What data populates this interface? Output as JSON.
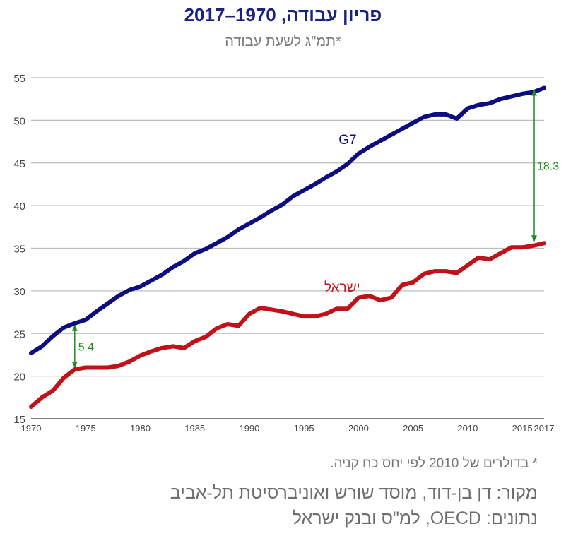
{
  "chart_data": {
    "type": "line",
    "title": "פריון עבודה, 1970–2017",
    "subtitle": "תמ\"ג לשעת עבודה*",
    "ylim": [
      15,
      55
    ],
    "xlim": [
      1970,
      2017
    ],
    "y_ticks": [
      15,
      20,
      25,
      30,
      35,
      40,
      45,
      50,
      55
    ],
    "x_ticks": [
      "1970",
      "1975",
      "1980",
      "1985",
      "1990",
      "1995",
      "2000",
      "2005",
      "2010",
      "2015",
      "2017"
    ],
    "x_tick_values": [
      1970,
      1975,
      1980,
      1985,
      1990,
      1995,
      2000,
      2005,
      2010,
      2015,
      2017
    ],
    "grid": true,
    "x": [
      1970,
      1971,
      1972,
      1973,
      1974,
      1975,
      1976,
      1977,
      1978,
      1979,
      1980,
      1981,
      1982,
      1983,
      1984,
      1985,
      1986,
      1987,
      1988,
      1989,
      1990,
      1991,
      1992,
      1993,
      1994,
      1995,
      1996,
      1997,
      1998,
      1999,
      2000,
      2001,
      2002,
      2003,
      2004,
      2005,
      2006,
      2007,
      2008,
      2009,
      2010,
      2011,
      2012,
      2013,
      2014,
      2015,
      2016,
      2017
    ],
    "series": [
      {
        "name": "G7",
        "color": "#0d0d80",
        "values": [
          22.7,
          23.5,
          24.7,
          25.7,
          26.2,
          26.6,
          27.6,
          28.5,
          29.4,
          30.1,
          30.5,
          31.2,
          31.9,
          32.8,
          33.5,
          34.4,
          34.9,
          35.6,
          36.3,
          37.2,
          37.9,
          38.6,
          39.4,
          40.1,
          41.1,
          41.8,
          42.5,
          43.3,
          44.0,
          44.9,
          46.1,
          46.9,
          47.6,
          48.3,
          49.0,
          49.7,
          50.4,
          50.7,
          50.7,
          50.2,
          51.4,
          51.8,
          52.0,
          52.5,
          52.8,
          53.1,
          53.3,
          53.8
        ]
      },
      {
        "name": "ישראל",
        "color": "#c1121a",
        "values": [
          16.4,
          17.5,
          18.3,
          19.8,
          20.8,
          21.0,
          21.0,
          21.0,
          21.2,
          21.7,
          22.4,
          22.9,
          23.3,
          23.5,
          23.3,
          24.1,
          24.6,
          25.6,
          26.1,
          25.9,
          27.3,
          28.0,
          27.8,
          27.6,
          27.3,
          27.0,
          27.0,
          27.3,
          27.9,
          27.9,
          29.2,
          29.4,
          28.9,
          29.2,
          30.7,
          31.0,
          32.0,
          32.3,
          32.3,
          32.1,
          33.0,
          33.9,
          33.7,
          34.4,
          35.1,
          35.1,
          35.3,
          35.6
        ]
      }
    ],
    "annotations": [
      {
        "label": "5.4",
        "year": 1974,
        "from": 20.8,
        "to": 26.2,
        "color": "#1e8c1e"
      },
      {
        "label": "18.3",
        "year": 2017,
        "from": 35.6,
        "to": 53.8,
        "color": "#1e8c1e"
      }
    ]
  },
  "footnote": "* בדולרים של 2010 לפי יחס כח קניה.",
  "source": "מקור: דן בן-דוד, מוסד שורש ואוניברסיטת תל-אביב",
  "credit": "נתונים: OECD, למ\"ס ובנק ישראל"
}
